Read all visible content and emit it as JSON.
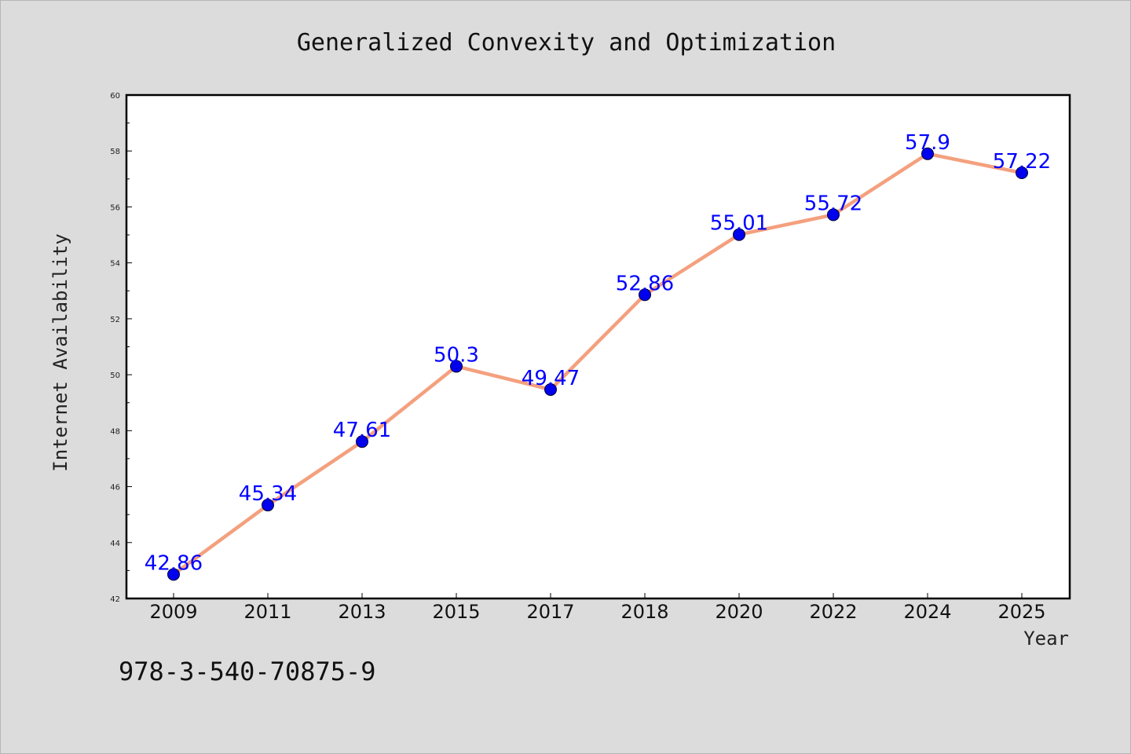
{
  "chart_data": {
    "type": "line",
    "title": "Generalized Convexity and Optimization",
    "xlabel": "Year",
    "ylabel": "Internet Availability",
    "categories": [
      "2009",
      "2011",
      "2013",
      "2015",
      "2017",
      "2018",
      "2020",
      "2022",
      "2024",
      "2025"
    ],
    "series": [
      {
        "values": [
          42.86,
          45.34,
          47.61,
          50.3,
          49.47,
          52.86,
          55.01,
          55.72,
          57.9,
          57.22
        ],
        "line_color": "#f4a07e",
        "marker_color": "#0000ee",
        "label_color": "#0000ff"
      }
    ],
    "ylim": [
      42,
      60
    ],
    "yticks": [
      42,
      44,
      46,
      48,
      50,
      52,
      54,
      56,
      58,
      60
    ],
    "data_labels": [
      "42.86",
      "45.34",
      "47.61",
      "50.3",
      "49.47",
      "52.86",
      "55.01",
      "55.72",
      "57.9",
      "57.22"
    ],
    "grid": false,
    "legend": "none"
  },
  "footer_text": "978-3-540-70875-9",
  "colors": {
    "figure_background": "#dcdcdc",
    "plot_background": "#ffffff",
    "axes": "#000000"
  }
}
